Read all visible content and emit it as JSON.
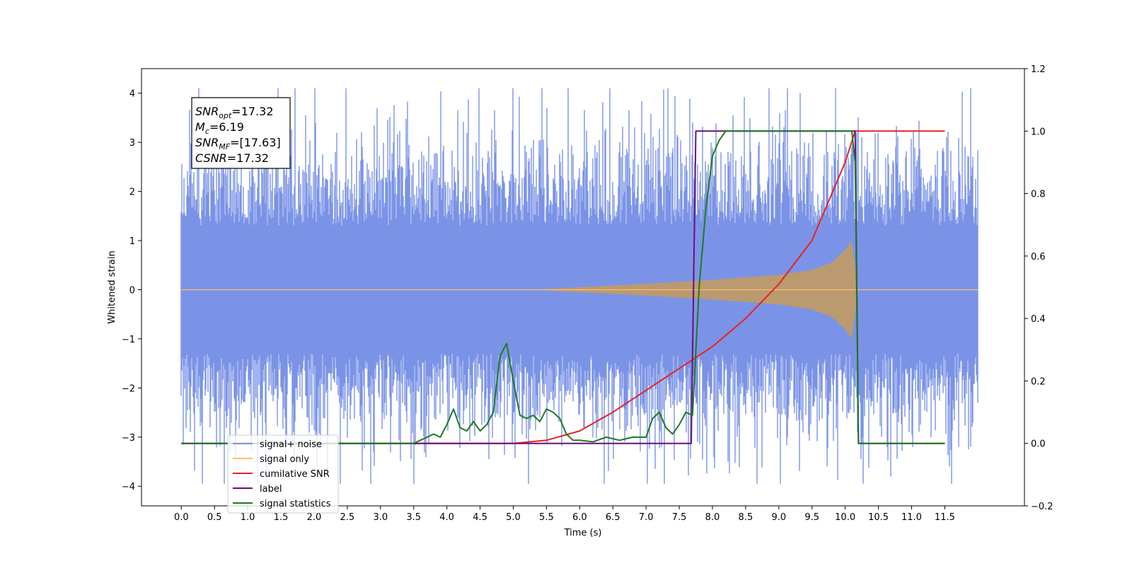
{
  "chart_data": {
    "type": "line",
    "xlabel": "Time (s)",
    "ylabel": "Whitened strain",
    "xlim": [
      -0.6,
      12.7
    ],
    "ylim": [
      -4.4,
      4.5
    ],
    "y2lim": [
      -0.2,
      1.2
    ],
    "x_ticks": [
      "0.0",
      "0.5",
      "1.0",
      "1.5",
      "2.0",
      "2.5",
      "3.0",
      "3.5",
      "4.0",
      "4.5",
      "5.0",
      "5.5",
      "6.0",
      "6.5",
      "7.0",
      "7.5",
      "8.0",
      "8.5",
      "9.0",
      "9.5",
      "10.0",
      "10.5",
      "11.0",
      "11.5"
    ],
    "y_ticks": [
      -4,
      -3,
      -2,
      -1,
      0,
      1,
      2,
      3,
      4
    ],
    "y_tick_labels": [
      "−4",
      "−3",
      "−2",
      "−1",
      "0",
      "1",
      "2",
      "3",
      "4"
    ],
    "y2_ticks": [
      -0.2,
      0.0,
      0.2,
      0.4,
      0.6,
      0.8,
      1.0,
      1.2
    ],
    "y2_tick_labels": [
      "−0.2",
      "0.0",
      "0.2",
      "0.4",
      "0.6",
      "0.8",
      "1.0",
      "1.2"
    ],
    "info_box": {
      "snr_opt": {
        "base": "SNR",
        "sub": "opt",
        "value": "=17.32"
      },
      "mc": {
        "base": "M",
        "sub": "c",
        "value": "=6.19"
      },
      "snr_mf": {
        "base": "SNR",
        "sub": "MF",
        "value": "=[17.63]"
      },
      "csnr": {
        "base": "CSNR",
        "sub": "",
        "value": "=17.32"
      }
    },
    "legend_position": "lower-left",
    "series": [
      {
        "name": "signal+ noise",
        "color": "#7b93e6",
        "axis": "left",
        "kind": "noisy strain, amplitude about ±2.5, spikes to about ±4",
        "x_range": [
          0.0,
          12.0
        ]
      },
      {
        "name": "signal only",
        "color": "#ffbf6b",
        "axis": "left",
        "kind": "chirp",
        "envelope": {
          "t": [
            0.0,
            5.3,
            6.0,
            7.0,
            8.0,
            9.0,
            9.5,
            9.8,
            10.0,
            10.1,
            10.15,
            10.2
          ],
          "a": [
            0.0,
            0.0,
            0.05,
            0.12,
            0.2,
            0.3,
            0.4,
            0.55,
            0.8,
            1.0,
            0.5,
            0.0
          ]
        }
      },
      {
        "name": "cumilative SNR",
        "color": "#e8221f",
        "axis": "right",
        "x": [
          0.0,
          4.0,
          5.0,
          5.5,
          6.0,
          6.5,
          7.0,
          7.5,
          8.0,
          8.5,
          9.0,
          9.5,
          10.0,
          10.15,
          10.2,
          11.5
        ],
        "y": [
          0.0,
          0.0,
          0.0,
          0.01,
          0.04,
          0.1,
          0.17,
          0.24,
          0.31,
          0.4,
          0.51,
          0.65,
          0.9,
          1.0,
          1.0,
          1.0
        ]
      },
      {
        "name": "label",
        "color": "#6a0f7d",
        "axis": "right",
        "x": [
          0.0,
          7.68,
          7.75,
          10.15,
          10.2,
          11.5
        ],
        "y": [
          0.0,
          0.0,
          1.0,
          1.0,
          0.0,
          0.0
        ]
      },
      {
        "name": "signal statistics",
        "color": "#1f7a1f",
        "axis": "right",
        "x": [
          0.0,
          3.0,
          3.5,
          3.8,
          3.9,
          4.0,
          4.1,
          4.2,
          4.3,
          4.4,
          4.5,
          4.6,
          4.7,
          4.8,
          4.9,
          5.0,
          5.1,
          5.2,
          5.3,
          5.4,
          5.5,
          5.6,
          5.7,
          5.8,
          5.9,
          6.0,
          6.2,
          6.4,
          6.6,
          6.8,
          7.0,
          7.1,
          7.2,
          7.3,
          7.4,
          7.5,
          7.6,
          7.7,
          7.8,
          7.9,
          8.0,
          8.1,
          8.2,
          8.3,
          8.5,
          9.0,
          9.5,
          10.0,
          10.1,
          10.15,
          10.2,
          11.5
        ],
        "y": [
          0.0,
          0.0,
          0.0,
          0.03,
          0.02,
          0.06,
          0.11,
          0.05,
          0.04,
          0.07,
          0.04,
          0.06,
          0.1,
          0.28,
          0.32,
          0.2,
          0.09,
          0.08,
          0.09,
          0.07,
          0.11,
          0.1,
          0.08,
          0.03,
          0.01,
          0.01,
          0.005,
          0.02,
          0.01,
          0.02,
          0.02,
          0.08,
          0.1,
          0.05,
          0.03,
          0.06,
          0.1,
          0.09,
          0.5,
          0.75,
          0.92,
          0.97,
          1.0,
          1.0,
          1.0,
          1.0,
          1.0,
          1.0,
          1.0,
          0.9,
          0.0,
          0.0
        ]
      }
    ]
  }
}
